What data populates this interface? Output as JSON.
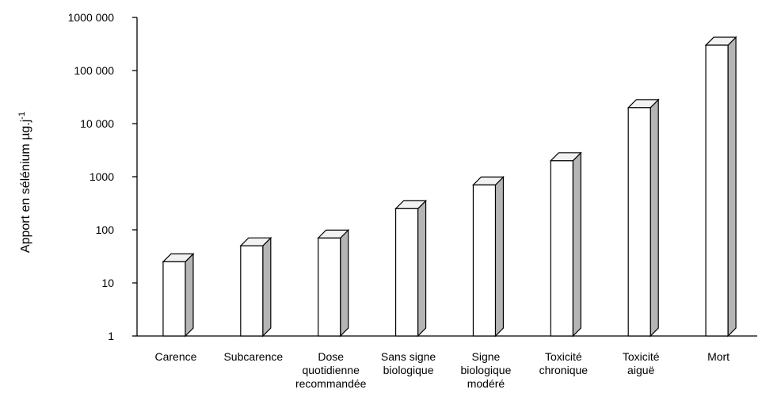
{
  "chart_data": {
    "type": "bar",
    "title": "",
    "ylabel": "Apport en sélénium µg.j",
    "ylabel_superscript": "-1",
    "xlabel": "",
    "yscale": "log",
    "ylim": [
      1,
      1000000
    ],
    "yticks": [
      {
        "value": 1,
        "label": "1"
      },
      {
        "value": 10,
        "label": "10"
      },
      {
        "value": 100,
        "label": "100"
      },
      {
        "value": 1000,
        "label": "1000"
      },
      {
        "value": 10000,
        "label": "10 000"
      },
      {
        "value": 100000,
        "label": "100 000"
      },
      {
        "value": 1000000,
        "label": "1000 000"
      }
    ],
    "categories": [
      [
        "Carence"
      ],
      [
        "Subcarence"
      ],
      [
        "Dose",
        "quotidienne",
        "recommandée"
      ],
      [
        "Sans signe",
        "biologique"
      ],
      [
        "Signe",
        "biologique",
        "modéré"
      ],
      [
        "Toxicité",
        "chronique"
      ],
      [
        "Toxicité",
        "aiguë"
      ],
      [
        "Mort"
      ]
    ],
    "values": [
      25,
      50,
      70,
      250,
      700,
      2000,
      20000,
      300000
    ],
    "grid": false,
    "bar_style": "3d",
    "colors": {
      "bar_front": "#ffffff",
      "bar_side": "#b5b5b5",
      "bar_top": "#f2f2f2",
      "stroke": "#000000"
    }
  }
}
